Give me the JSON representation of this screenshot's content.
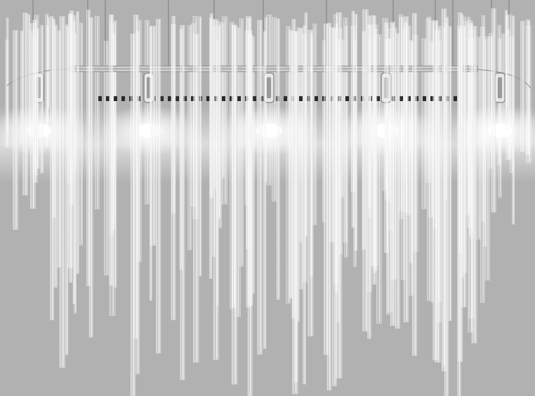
{
  "image": {
    "subject": "crystal-rod-chandelier",
    "background_color": "#b1b1b1",
    "frame_color": "#d8d8d8",
    "rod_color": "#f4f4f4",
    "glow_color": "#ffffff",
    "bulb_count": 5,
    "suspension_wire_count": 12
  }
}
